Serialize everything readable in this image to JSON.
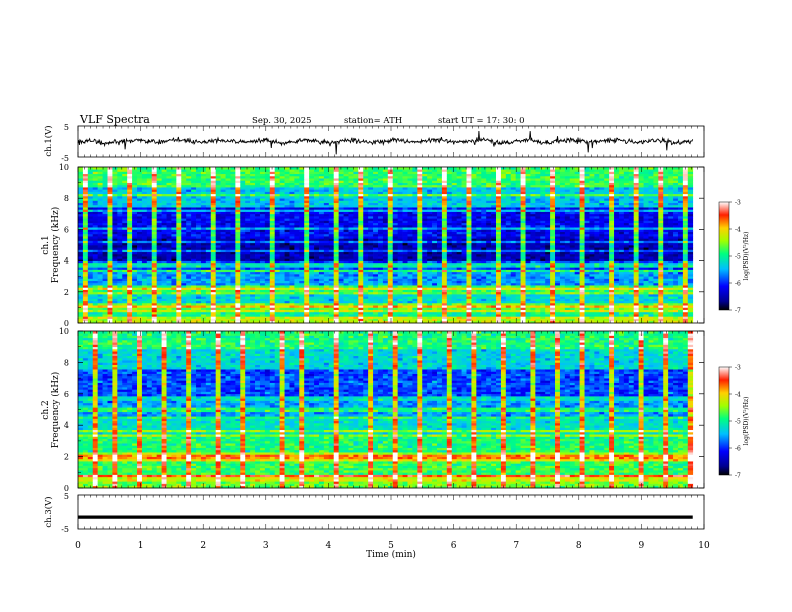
{
  "header": {
    "title": "VLF  Spectra",
    "date": "Sep. 30, 2025",
    "station": "station= ATH",
    "start": "start  UT  =   17: 30: 0"
  },
  "chart_data": [
    {
      "type": "line",
      "panel": "ch1-waveform",
      "ylabel": "ch.1(V)",
      "ylim": [
        -5,
        5
      ],
      "y_ticks": [
        "5",
        "-5"
      ],
      "xlim": [
        0,
        10
      ],
      "x_end": 9.82,
      "trace": "noisy waveform around 0 V, amplitude about ±2 V with spikes to about ±4 V",
      "color": "#000000"
    },
    {
      "type": "heatmap",
      "panel": "ch1-spectrogram",
      "ylabel_channel": "ch.1",
      "ylabel": "Frequency  (kHz)",
      "ylim": [
        0,
        10
      ],
      "y_ticks": [
        "0",
        "2",
        "4",
        "6",
        "8",
        "10"
      ],
      "xlim": [
        0,
        10
      ],
      "x_end": 9.82,
      "colorbar": {
        "label": "log(PSD)(V²/Hz)",
        "range": [
          -7,
          -3
        ],
        "ticks": [
          "-3",
          "-4",
          "-5",
          "-6",
          "-7"
        ]
      },
      "bands": [
        {
          "f0": 0.0,
          "f1": 0.3,
          "level": -4.3
        },
        {
          "f0": 0.3,
          "f1": 0.8,
          "level": -5.0
        },
        {
          "f0": 0.8,
          "f1": 1.3,
          "level": -4.6
        },
        {
          "f0": 1.3,
          "f1": 2.0,
          "level": -5.3
        },
        {
          "f0": 2.0,
          "f1": 2.4,
          "level": -4.8
        },
        {
          "f0": 2.4,
          "f1": 3.4,
          "level": -5.6
        },
        {
          "f0": 3.4,
          "f1": 4.0,
          "level": -5.9
        },
        {
          "f0": 4.0,
          "f1": 5.4,
          "level": -6.5
        },
        {
          "f0": 5.4,
          "f1": 7.5,
          "level": -6.2
        },
        {
          "f0": 7.5,
          "f1": 8.7,
          "level": -5.4
        },
        {
          "f0": 8.7,
          "f1": 10.0,
          "level": -4.8
        }
      ],
      "lines_khz": [
        0.4,
        0.8,
        1.1,
        1.9,
        2.2,
        3.4,
        3.7,
        4.6,
        5.2,
        6.1,
        7.2,
        8.2
      ],
      "spikes_min": [
        0.1,
        0.45,
        0.8,
        1.2,
        1.55,
        2.15,
        2.55,
        3.1,
        3.6,
        4.05,
        4.5,
        4.95,
        5.4,
        5.8,
        6.2,
        6.65,
        7.1,
        7.55,
        8.0,
        8.45,
        8.9,
        9.3,
        9.7
      ]
    },
    {
      "type": "heatmap",
      "panel": "ch2-spectrogram",
      "ylabel_channel": "ch.2",
      "ylabel": "Frequency  (kHz)",
      "ylim": [
        0,
        10
      ],
      "y_ticks": [
        "0",
        "2",
        "4",
        "6",
        "8",
        "10"
      ],
      "xlim": [
        0,
        10
      ],
      "x_end": 9.82,
      "colorbar": {
        "label": "log(PSD)(V²/Hz)",
        "range": [
          -7,
          -3
        ],
        "ticks": [
          "-3",
          "-4",
          "-5",
          "-6",
          "-7"
        ]
      },
      "bands": [
        {
          "f0": 0.0,
          "f1": 0.4,
          "level": -4.6
        },
        {
          "f0": 0.4,
          "f1": 0.9,
          "level": -4.2
        },
        {
          "f0": 0.9,
          "f1": 1.8,
          "level": -4.8
        },
        {
          "f0": 1.8,
          "f1": 2.3,
          "level": -4.4
        },
        {
          "f0": 2.3,
          "f1": 3.3,
          "level": -4.9
        },
        {
          "f0": 3.3,
          "f1": 4.4,
          "level": -5.2
        },
        {
          "f0": 4.4,
          "f1": 5.6,
          "level": -5.6
        },
        {
          "f0": 5.6,
          "f1": 7.6,
          "level": -5.9
        },
        {
          "f0": 7.6,
          "f1": 8.8,
          "level": -5.3
        },
        {
          "f0": 8.8,
          "f1": 10.0,
          "level": -4.9
        }
      ],
      "lines_khz": [
        0.8,
        1.8,
        2.0,
        3.4,
        3.6,
        4.5,
        5.0,
        5.7
      ],
      "spikes_min": [
        0.2,
        0.55,
        0.95,
        1.3,
        1.7,
        2.2,
        2.6,
        3.2,
        3.55,
        4.1,
        4.6,
        5.0,
        5.45,
        5.9,
        6.3,
        6.75,
        7.2,
        7.6,
        8.05,
        8.5,
        8.95,
        9.35,
        9.75
      ]
    },
    {
      "type": "line",
      "panel": "ch3-waveform",
      "ylabel": "ch.3(V)",
      "ylim": [
        -5,
        5
      ],
      "y_ticks": [
        "5",
        "-5"
      ],
      "xlim": [
        0,
        10
      ],
      "x_end": 9.82,
      "trace": "flat thick trace at about -1.5 V",
      "level_v": -1.5,
      "color": "#000000"
    }
  ],
  "x_axis": {
    "label": "Time  (min)",
    "ticks": [
      "0",
      "1",
      "2",
      "3",
      "4",
      "5",
      "6",
      "7",
      "8",
      "9",
      "10"
    ]
  }
}
